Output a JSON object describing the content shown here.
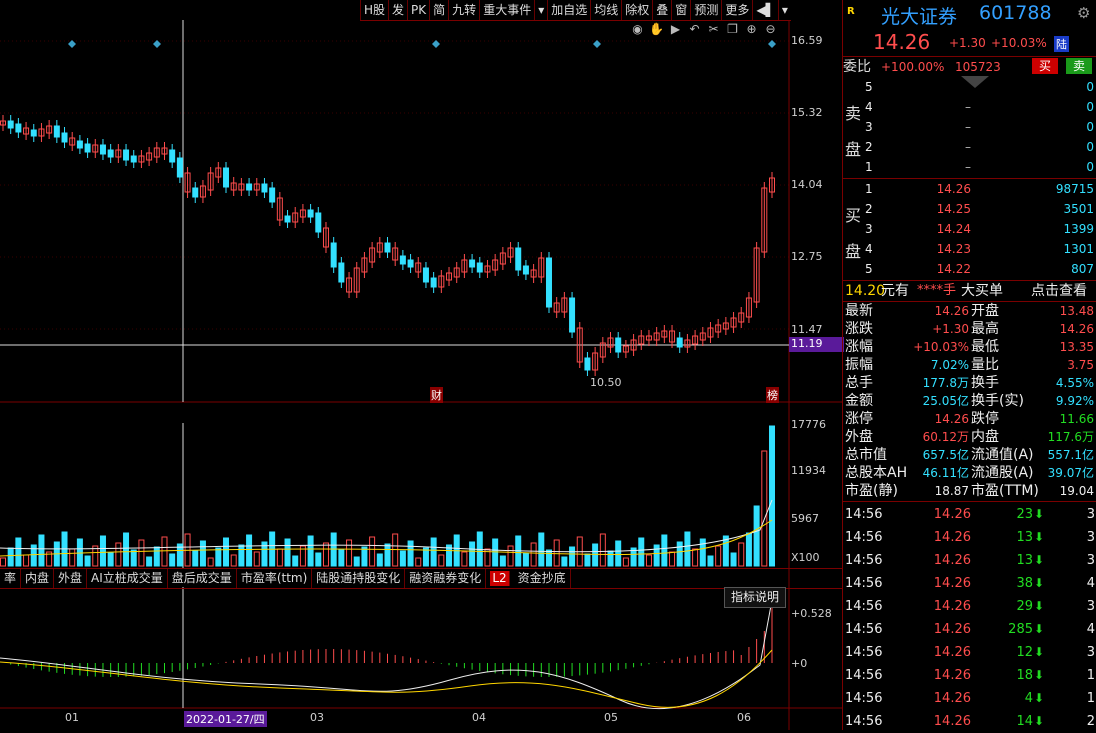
{
  "toolbar": {
    "items": [
      "H股",
      "发",
      "PK",
      "简",
      "九转",
      "重大事件",
      "▾",
      "加自选",
      "均线",
      "除权",
      "叠",
      "窗",
      "预测",
      "更多",
      "◀▌",
      "▾"
    ]
  },
  "price_axis": [
    "16.59",
    "15.32",
    "14.04",
    "12.75",
    "11.47"
  ],
  "crosshair_price": "11.19",
  "low_marker": "10.50",
  "event_labels": {
    "cai": "财",
    "bang": "榜"
  },
  "vol_axis": [
    "17776",
    "11934",
    "5967",
    "X100"
  ],
  "macd_axis": [
    "+0.528",
    "+0"
  ],
  "indicator_tabs": [
    "率",
    "内盘",
    "外盘",
    "AI立桩成交量",
    "盘后成交量",
    "市盈率(ttm)",
    "陆股通持股变化",
    "融资融券变化",
    "L2",
    "资金抄底"
  ],
  "indicator_help": "指标说明",
  "date_axis": {
    "m01": "01",
    "cursor": "2022-01-27/四",
    "m03": "03",
    "m04": "04",
    "m05": "05",
    "m06": "06"
  },
  "header": {
    "badge": "R",
    "name": "光大证券",
    "code": "601788",
    "price": "14.26",
    "change": "+1.30",
    "pct": "+10.03%",
    "tag": "陆"
  },
  "weibi": {
    "label": "委比",
    "ratio": "+100.00%",
    "diff": "105723",
    "buy": "买",
    "sell": "卖"
  },
  "sell_label": [
    "卖",
    "盘"
  ],
  "buy_label": [
    "买",
    "盘"
  ],
  "sells": [
    {
      "lvl": "5",
      "price": "",
      "vol": "0"
    },
    {
      "lvl": "4",
      "price": "–",
      "vol": "0"
    },
    {
      "lvl": "3",
      "price": "–",
      "vol": "0"
    },
    {
      "lvl": "2",
      "price": "–",
      "vol": "0"
    },
    {
      "lvl": "1",
      "price": "–",
      "vol": "0"
    }
  ],
  "buys": [
    {
      "lvl": "1",
      "price": "14.26",
      "vol": "98715"
    },
    {
      "lvl": "2",
      "price": "14.25",
      "vol": "3501"
    },
    {
      "lvl": "3",
      "price": "14.24",
      "vol": "1399"
    },
    {
      "lvl": "4",
      "price": "14.23",
      "vol": "1301"
    },
    {
      "lvl": "5",
      "price": "14.22",
      "vol": "807"
    }
  ],
  "bigorder": {
    "price": "14.20",
    "unit": "元有",
    "hands": "****手",
    "label": "大买单",
    "link": "点击查看"
  },
  "quote": [
    {
      "k1": "最新",
      "v1": "14.26",
      "c1": "red",
      "k2": "开盘",
      "v2": "13.48",
      "c2": "red"
    },
    {
      "k1": "涨跌",
      "v1": "+1.30",
      "c1": "red",
      "k2": "最高",
      "v2": "14.26",
      "c2": "red"
    },
    {
      "k1": "涨幅",
      "v1": "+10.03%",
      "c1": "red",
      "k2": "最低",
      "v2": "13.35",
      "c2": "red"
    },
    {
      "k1": "振幅",
      "v1": "7.02%",
      "c1": "cyan",
      "k2": "量比",
      "v2": "3.75",
      "c2": "red"
    },
    {
      "k1": "总手",
      "v1": "177.8万",
      "c1": "cyan",
      "k2": "换手",
      "v2": "4.55%",
      "c2": "cyan"
    },
    {
      "k1": "金额",
      "v1": "25.05亿",
      "c1": "cyan",
      "k2": "换手(实)",
      "v2": "9.92%",
      "c2": "cyan"
    },
    {
      "k1": "涨停",
      "v1": "14.26",
      "c1": "red",
      "k2": "跌停",
      "v2": "11.66",
      "c2": "green"
    },
    {
      "k1": "外盘",
      "v1": "60.12万",
      "c1": "red",
      "k2": "内盘",
      "v2": "117.6万",
      "c2": "green"
    },
    {
      "k1": "总市值",
      "v1": "657.5亿",
      "c1": "cyan",
      "k2": "流通值(A)",
      "v2": "557.1亿",
      "c2": "cyan"
    },
    {
      "k1": "总股本AH",
      "v1": "46.11亿",
      "c1": "cyan",
      "k2": "流通股(A)",
      "v2": "39.07亿",
      "c2": "cyan"
    },
    {
      "k1": "市盈(静)",
      "v1": "18.87",
      "c1": "white",
      "k2": "市盈(TTM)",
      "v2": "19.04",
      "c2": "white"
    }
  ],
  "ticks": [
    {
      "t": "14:56",
      "p": "14.26",
      "v": "23",
      "n": "3"
    },
    {
      "t": "14:56",
      "p": "14.26",
      "v": "13",
      "n": "3"
    },
    {
      "t": "14:56",
      "p": "14.26",
      "v": "13",
      "n": "3"
    },
    {
      "t": "14:56",
      "p": "14.26",
      "v": "38",
      "n": "4"
    },
    {
      "t": "14:56",
      "p": "14.26",
      "v": "29",
      "n": "3"
    },
    {
      "t": "14:56",
      "p": "14.26",
      "v": "285",
      "n": "4"
    },
    {
      "t": "14:56",
      "p": "14.26",
      "v": "12",
      "n": "3"
    },
    {
      "t": "14:56",
      "p": "14.26",
      "v": "18",
      "n": "1"
    },
    {
      "t": "14:56",
      "p": "14.26",
      "v": "4",
      "n": "1"
    },
    {
      "t": "14:56",
      "p": "14.26",
      "v": "14",
      "n": "2"
    }
  ]
}
